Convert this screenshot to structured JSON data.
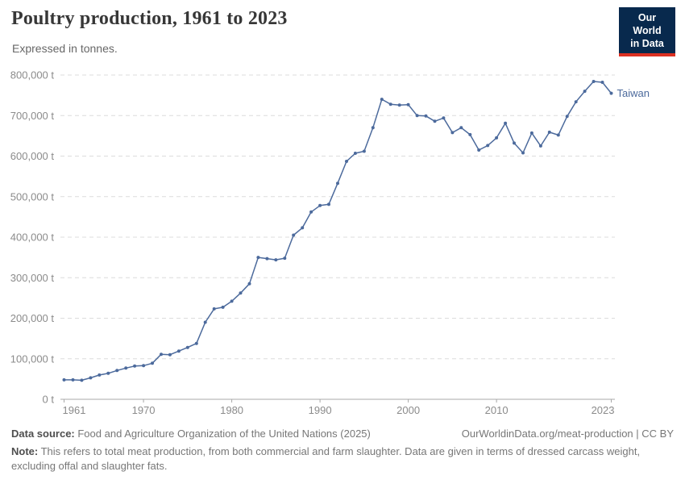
{
  "header": {
    "title": "Poultry production, 1961 to 2023",
    "subtitle": "Expressed in tonnes."
  },
  "logo": {
    "line1": "Our World",
    "line2": "in Data",
    "bg_color": "#08294d",
    "accent_color": "#dc3022",
    "text_color": "#ffffff"
  },
  "chart_data": {
    "type": "line",
    "title": "Poultry production, 1961 to 2023",
    "subtitle": "Expressed in tonnes.",
    "unit": "t",
    "xlabel": "",
    "ylabel": "",
    "ylim": [
      0,
      800000
    ],
    "yticks": [
      0,
      100000,
      200000,
      300000,
      400000,
      500000,
      600000,
      700000,
      800000
    ],
    "xticks": [
      1961,
      1970,
      1980,
      1990,
      2000,
      2010,
      2023
    ],
    "grid": "horizontal-dashed",
    "legend": "end-of-line-label",
    "x_start": 1961,
    "x_end": 2023,
    "series": [
      {
        "name": "Taiwan",
        "color": "#4C6A9C",
        "years": [
          1961,
          1962,
          1963,
          1964,
          1965,
          1966,
          1967,
          1968,
          1969,
          1970,
          1971,
          1972,
          1973,
          1974,
          1975,
          1976,
          1977,
          1978,
          1979,
          1980,
          1981,
          1982,
          1983,
          1984,
          1985,
          1986,
          1987,
          1988,
          1989,
          1990,
          1991,
          1992,
          1993,
          1994,
          1995,
          1996,
          1997,
          1998,
          1999,
          2000,
          2001,
          2002,
          2003,
          2004,
          2005,
          2006,
          2007,
          2008,
          2009,
          2010,
          2011,
          2012,
          2013,
          2014,
          2015,
          2016,
          2017,
          2018,
          2019,
          2020,
          2021,
          2022,
          2023
        ],
        "values": [
          48000,
          48000,
          47000,
          53000,
          60000,
          64000,
          71000,
          77000,
          82000,
          83000,
          89000,
          111000,
          110000,
          119000,
          128000,
          138000,
          190000,
          223000,
          227000,
          242000,
          262000,
          285000,
          350000,
          347000,
          344000,
          348000,
          405000,
          423000,
          462000,
          478000,
          481000,
          533000,
          587000,
          607000,
          612000,
          670000,
          740000,
          728000,
          726000,
          727000,
          700000,
          699000,
          686000,
          694000,
          658000,
          670000,
          653000,
          615000,
          626000,
          645000,
          681000,
          632000,
          608000,
          657000,
          625000,
          659000,
          652000,
          698000,
          734000,
          760000,
          784000,
          782000,
          755000
        ]
      }
    ],
    "colors": {
      "grid": "#dcdcdc",
      "axis": "#a8a8a8",
      "tick_label": "#8b8b8b"
    }
  },
  "footer": {
    "source_label": "Data source:",
    "source_text": " Food and Agriculture Organization of the United Nations (2025)",
    "attribution": "OurWorldinData.org/meat-production | CC BY",
    "note_label": "Note:",
    "note_text": " This refers to total meat production, from both commercial and farm slaughter. Data are given in terms of dressed carcass weight, excluding offal and slaughter fats."
  }
}
